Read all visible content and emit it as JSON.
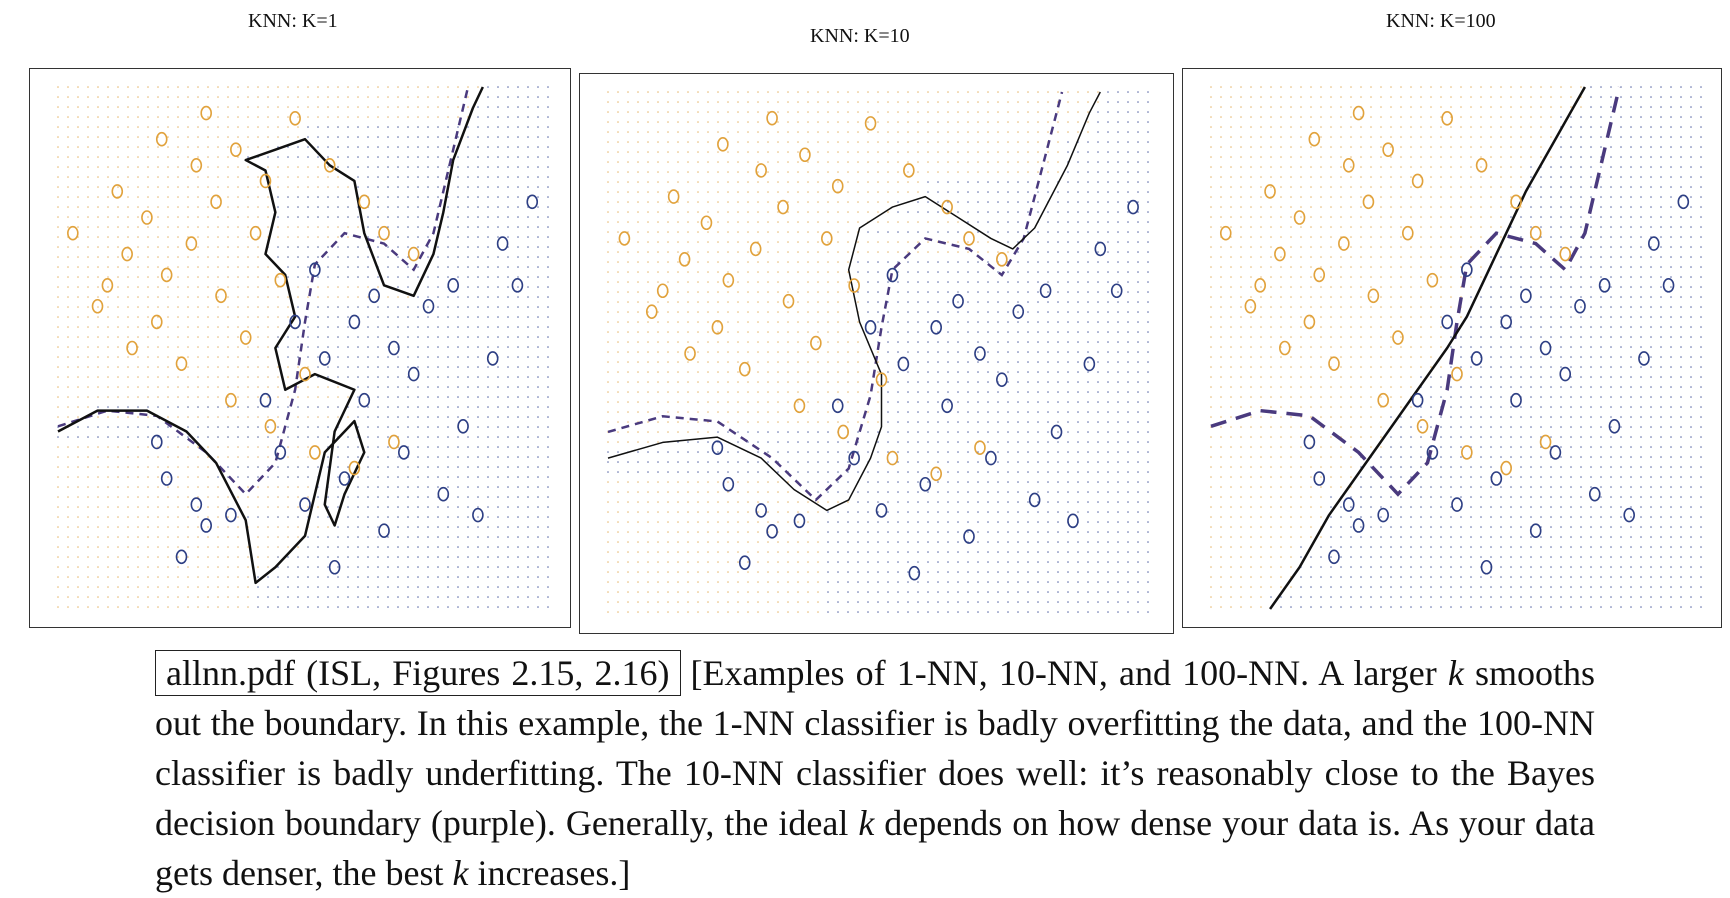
{
  "colors": {
    "orange": "#e1a23c",
    "blue": "#2e3f84",
    "bayes": "#4a3a7e",
    "grid_orange": "#e6b870",
    "grid_blue": "#5b6aa6",
    "knn_line": "#111111"
  },
  "panels": [
    {
      "title": "KNN: K=1"
    },
    {
      "title": "KNN: K=10"
    },
    {
      "title": "KNN: K=100"
    }
  ],
  "caption": {
    "boxed": "allnn.pdf (ISL, Figures 2.15, 2.16)",
    "p1": "[Examples of 1-NN, 10-NN, and 100-NN. A larger ",
    "k": "k",
    "p2": " smooths out the boundary. In this example, the 1-NN classifier is badly overfitting the data, and the 100-NN classifier is badly underfitting. The 10-NN classifier does well: it’s reasonably close to the Bayes decision boundary (purple). Generally, the ideal ",
    "p3": " depends on how dense your data is. As your data gets denser, the best ",
    "p4": " increases.]"
  },
  "chart_data": [
    {
      "type": "scatter",
      "title": "KNN: K=1",
      "k": 1,
      "xlim": [
        0,
        1
      ],
      "ylim": [
        0,
        1
      ],
      "grid": true,
      "series": [
        {
          "values": [
            [
              0.03,
              0.72
            ],
            [
              0.08,
              0.58
            ],
            [
              0.1,
              0.62
            ],
            [
              0.12,
              0.8
            ],
            [
              0.14,
              0.68
            ],
            [
              0.15,
              0.5
            ],
            [
              0.18,
              0.75
            ],
            [
              0.2,
              0.55
            ],
            [
              0.21,
              0.9
            ],
            [
              0.22,
              0.64
            ],
            [
              0.25,
              0.47
            ],
            [
              0.27,
              0.7
            ],
            [
              0.28,
              0.85
            ],
            [
              0.3,
              0.95
            ],
            [
              0.32,
              0.78
            ],
            [
              0.33,
              0.6
            ],
            [
              0.35,
              0.4
            ],
            [
              0.36,
              0.88
            ],
            [
              0.38,
              0.52
            ],
            [
              0.4,
              0.72
            ],
            [
              0.42,
              0.82
            ],
            [
              0.43,
              0.35
            ],
            [
              0.45,
              0.63
            ],
            [
              0.48,
              0.94
            ],
            [
              0.5,
              0.45
            ],
            [
              0.52,
              0.3
            ],
            [
              0.55,
              0.85
            ],
            [
              0.6,
              0.27
            ],
            [
              0.62,
              0.78
            ],
            [
              0.66,
              0.72
            ],
            [
              0.68,
              0.32
            ],
            [
              0.72,
              0.68
            ]
          ]
        },
        {
          "values": [
            [
              0.2,
              0.32
            ],
            [
              0.22,
              0.25
            ],
            [
              0.25,
              0.1
            ],
            [
              0.28,
              0.2
            ],
            [
              0.3,
              0.16
            ],
            [
              0.35,
              0.18
            ],
            [
              0.42,
              0.4
            ],
            [
              0.45,
              0.3
            ],
            [
              0.48,
              0.55
            ],
            [
              0.5,
              0.2
            ],
            [
              0.52,
              0.65
            ],
            [
              0.54,
              0.48
            ],
            [
              0.56,
              0.08
            ],
            [
              0.58,
              0.25
            ],
            [
              0.6,
              0.55
            ],
            [
              0.62,
              0.4
            ],
            [
              0.64,
              0.6
            ],
            [
              0.66,
              0.15
            ],
            [
              0.68,
              0.5
            ],
            [
              0.7,
              0.3
            ],
            [
              0.72,
              0.45
            ],
            [
              0.75,
              0.58
            ],
            [
              0.78,
              0.22
            ],
            [
              0.8,
              0.62
            ],
            [
              0.82,
              0.35
            ],
            [
              0.85,
              0.18
            ],
            [
              0.88,
              0.48
            ],
            [
              0.9,
              0.7
            ],
            [
              0.93,
              0.62
            ],
            [
              0.96,
              0.78
            ]
          ]
        }
      ]
    },
    {
      "type": "scatter",
      "title": "KNN: K=10",
      "k": 10,
      "xlim": [
        0,
        1
      ],
      "ylim": [
        0,
        1
      ],
      "grid": true,
      "series": [
        {
          "values": [
            [
              0.03,
              0.72
            ],
            [
              0.08,
              0.58
            ],
            [
              0.1,
              0.62
            ],
            [
              0.12,
              0.8
            ],
            [
              0.14,
              0.68
            ],
            [
              0.15,
              0.5
            ],
            [
              0.18,
              0.75
            ],
            [
              0.2,
              0.55
            ],
            [
              0.21,
              0.9
            ],
            [
              0.22,
              0.64
            ],
            [
              0.25,
              0.47
            ],
            [
              0.27,
              0.7
            ],
            [
              0.28,
              0.85
            ],
            [
              0.3,
              0.95
            ],
            [
              0.32,
              0.78
            ],
            [
              0.33,
              0.6
            ],
            [
              0.35,
              0.4
            ],
            [
              0.36,
              0.88
            ],
            [
              0.38,
              0.52
            ],
            [
              0.4,
              0.72
            ],
            [
              0.42,
              0.82
            ],
            [
              0.43,
              0.35
            ],
            [
              0.45,
              0.63
            ],
            [
              0.48,
              0.94
            ],
            [
              0.5,
              0.45
            ],
            [
              0.52,
              0.3
            ],
            [
              0.55,
              0.85
            ],
            [
              0.6,
              0.27
            ],
            [
              0.62,
              0.78
            ],
            [
              0.66,
              0.72
            ],
            [
              0.68,
              0.32
            ],
            [
              0.72,
              0.68
            ]
          ]
        },
        {
          "values": [
            [
              0.2,
              0.32
            ],
            [
              0.22,
              0.25
            ],
            [
              0.25,
              0.1
            ],
            [
              0.28,
              0.2
            ],
            [
              0.3,
              0.16
            ],
            [
              0.35,
              0.18
            ],
            [
              0.42,
              0.4
            ],
            [
              0.45,
              0.3
            ],
            [
              0.48,
              0.55
            ],
            [
              0.5,
              0.2
            ],
            [
              0.52,
              0.65
            ],
            [
              0.54,
              0.48
            ],
            [
              0.56,
              0.08
            ],
            [
              0.58,
              0.25
            ],
            [
              0.6,
              0.55
            ],
            [
              0.62,
              0.4
            ],
            [
              0.64,
              0.6
            ],
            [
              0.66,
              0.15
            ],
            [
              0.68,
              0.5
            ],
            [
              0.7,
              0.3
            ],
            [
              0.72,
              0.45
            ],
            [
              0.75,
              0.58
            ],
            [
              0.78,
              0.22
            ],
            [
              0.8,
              0.62
            ],
            [
              0.82,
              0.35
            ],
            [
              0.85,
              0.18
            ],
            [
              0.88,
              0.48
            ],
            [
              0.9,
              0.7
            ],
            [
              0.93,
              0.62
            ],
            [
              0.96,
              0.78
            ]
          ]
        }
      ]
    },
    {
      "type": "scatter",
      "title": "KNN: K=100",
      "k": 100,
      "xlim": [
        0,
        1
      ],
      "ylim": [
        0,
        1
      ],
      "grid": true,
      "series": [
        {
          "values": [
            [
              0.03,
              0.72
            ],
            [
              0.08,
              0.58
            ],
            [
              0.1,
              0.62
            ],
            [
              0.12,
              0.8
            ],
            [
              0.14,
              0.68
            ],
            [
              0.15,
              0.5
            ],
            [
              0.18,
              0.75
            ],
            [
              0.2,
              0.55
            ],
            [
              0.21,
              0.9
            ],
            [
              0.22,
              0.64
            ],
            [
              0.25,
              0.47
            ],
            [
              0.27,
              0.7
            ],
            [
              0.28,
              0.85
            ],
            [
              0.3,
              0.95
            ],
            [
              0.32,
              0.78
            ],
            [
              0.33,
              0.6
            ],
            [
              0.35,
              0.4
            ],
            [
              0.36,
              0.88
            ],
            [
              0.38,
              0.52
            ],
            [
              0.4,
              0.72
            ],
            [
              0.42,
              0.82
            ],
            [
              0.43,
              0.35
            ],
            [
              0.45,
              0.63
            ],
            [
              0.48,
              0.94
            ],
            [
              0.5,
              0.45
            ],
            [
              0.52,
              0.3
            ],
            [
              0.55,
              0.85
            ],
            [
              0.6,
              0.27
            ],
            [
              0.62,
              0.78
            ],
            [
              0.66,
              0.72
            ],
            [
              0.68,
              0.32
            ],
            [
              0.72,
              0.68
            ]
          ]
        },
        {
          "values": [
            [
              0.2,
              0.32
            ],
            [
              0.22,
              0.25
            ],
            [
              0.25,
              0.1
            ],
            [
              0.28,
              0.2
            ],
            [
              0.3,
              0.16
            ],
            [
              0.35,
              0.18
            ],
            [
              0.42,
              0.4
            ],
            [
              0.45,
              0.3
            ],
            [
              0.48,
              0.55
            ],
            [
              0.5,
              0.2
            ],
            [
              0.52,
              0.65
            ],
            [
              0.54,
              0.48
            ],
            [
              0.56,
              0.08
            ],
            [
              0.58,
              0.25
            ],
            [
              0.6,
              0.55
            ],
            [
              0.62,
              0.4
            ],
            [
              0.64,
              0.6
            ],
            [
              0.66,
              0.15
            ],
            [
              0.68,
              0.5
            ],
            [
              0.7,
              0.3
            ],
            [
              0.72,
              0.45
            ],
            [
              0.75,
              0.58
            ],
            [
              0.78,
              0.22
            ],
            [
              0.8,
              0.62
            ],
            [
              0.82,
              0.35
            ],
            [
              0.85,
              0.18
            ],
            [
              0.88,
              0.48
            ],
            [
              0.9,
              0.7
            ],
            [
              0.93,
              0.62
            ],
            [
              0.96,
              0.78
            ]
          ]
        }
      ]
    }
  ]
}
